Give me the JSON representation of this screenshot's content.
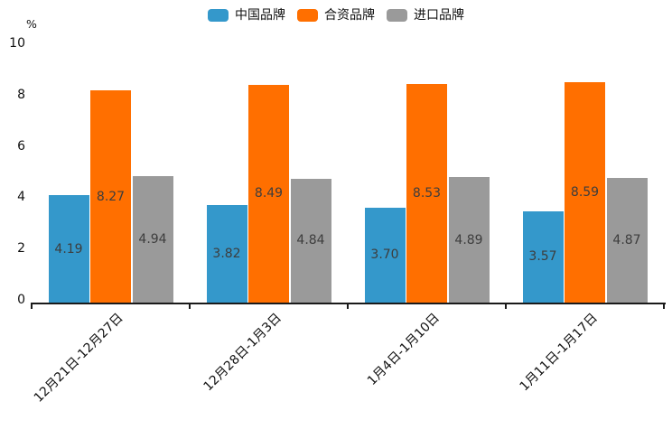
{
  "page": {
    "background": "#ffffff"
  },
  "chart_data": {
    "type": "bar",
    "title": "",
    "unit_label": "%",
    "categories": [
      "12月21日-12月27日",
      "12月28日-1月3日",
      "1月4日-1月10日",
      "1月11日-1月17日"
    ],
    "series": [
      {
        "name": "中国品牌",
        "color": "#3498cb",
        "values": [
          4.19,
          3.82,
          3.7,
          3.57
        ]
      },
      {
        "name": "合资品牌",
        "color": "#ff6f00",
        "values": [
          8.27,
          8.49,
          8.53,
          8.59
        ]
      },
      {
        "name": "进口品牌",
        "color": "#9a9a9a",
        "values": [
          4.94,
          4.84,
          4.89,
          4.87
        ]
      }
    ],
    "yticks": [
      0,
      2,
      4,
      6,
      8,
      10
    ],
    "ylim": [
      0,
      10
    ],
    "grid": false,
    "legend_position": "top",
    "value_labels_shown": true,
    "value_label_format": "0.00",
    "axis_color": "#1a1a1a",
    "tick_label_color": "#111111",
    "value_label_color": "#3d3d3d"
  }
}
